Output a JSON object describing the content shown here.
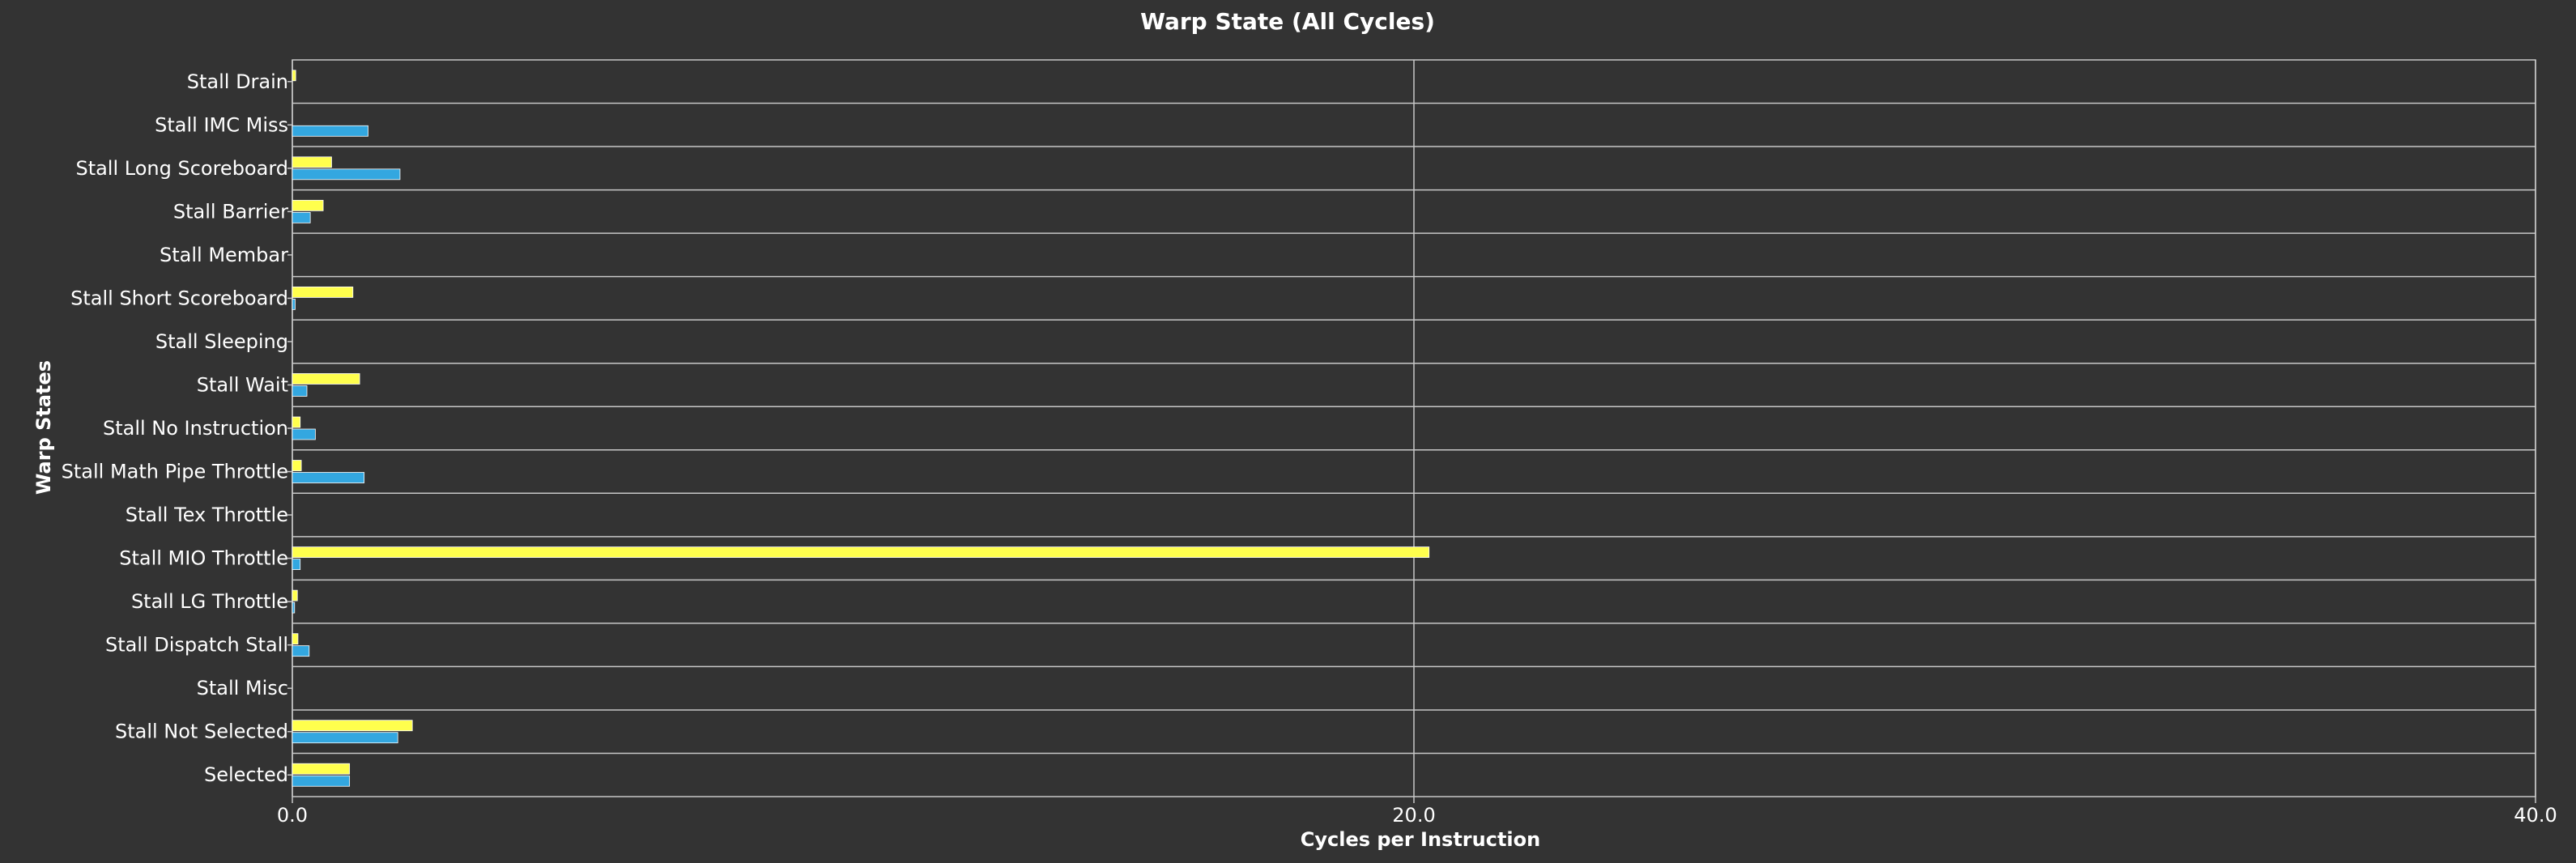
{
  "chart_data": {
    "type": "bar",
    "orientation": "horizontal",
    "title": "Warp State (All Cycles)",
    "xlabel": "Cycles per Instruction",
    "ylabel": "Warp States",
    "xlim": [
      0,
      40
    ],
    "x_ticks": [
      "0.0",
      "20.0",
      "40.0"
    ],
    "grid": "vertical major gridlines at each tick; horizontal separators between categories",
    "legend": "none",
    "categories": [
      "Stall Drain",
      "Stall IMC Miss",
      "Stall Long Scoreboard",
      "Stall Barrier",
      "Stall Membar",
      "Stall Short Scoreboard",
      "Stall Sleeping",
      "Stall Wait",
      "Stall No Instruction",
      "Stall Math Pipe Throttle",
      "Stall Tex Throttle",
      "Stall MIO Throttle",
      "Stall LG Throttle",
      "Stall Dispatch Stall",
      "Stall Misc",
      "Stall Not Selected",
      "Selected"
    ],
    "series": [
      {
        "color": "#ffff4d",
        "values": [
          0.06,
          0,
          0.7,
          0.55,
          0,
          1.08,
          0,
          1.2,
          0.14,
          0.16,
          0,
          20.27,
          0.09,
          0.1,
          0,
          2.14,
          1.02
        ]
      },
      {
        "color": "#33a7e0",
        "values": [
          0,
          1.35,
          1.92,
          0.32,
          0,
          0.05,
          0,
          0.26,
          0.41,
          1.28,
          0,
          0.14,
          0.04,
          0.3,
          0,
          1.88,
          1.02
        ]
      }
    ],
    "colors": {
      "background": "#333333",
      "gridline": "#c8c8c8"
    }
  }
}
